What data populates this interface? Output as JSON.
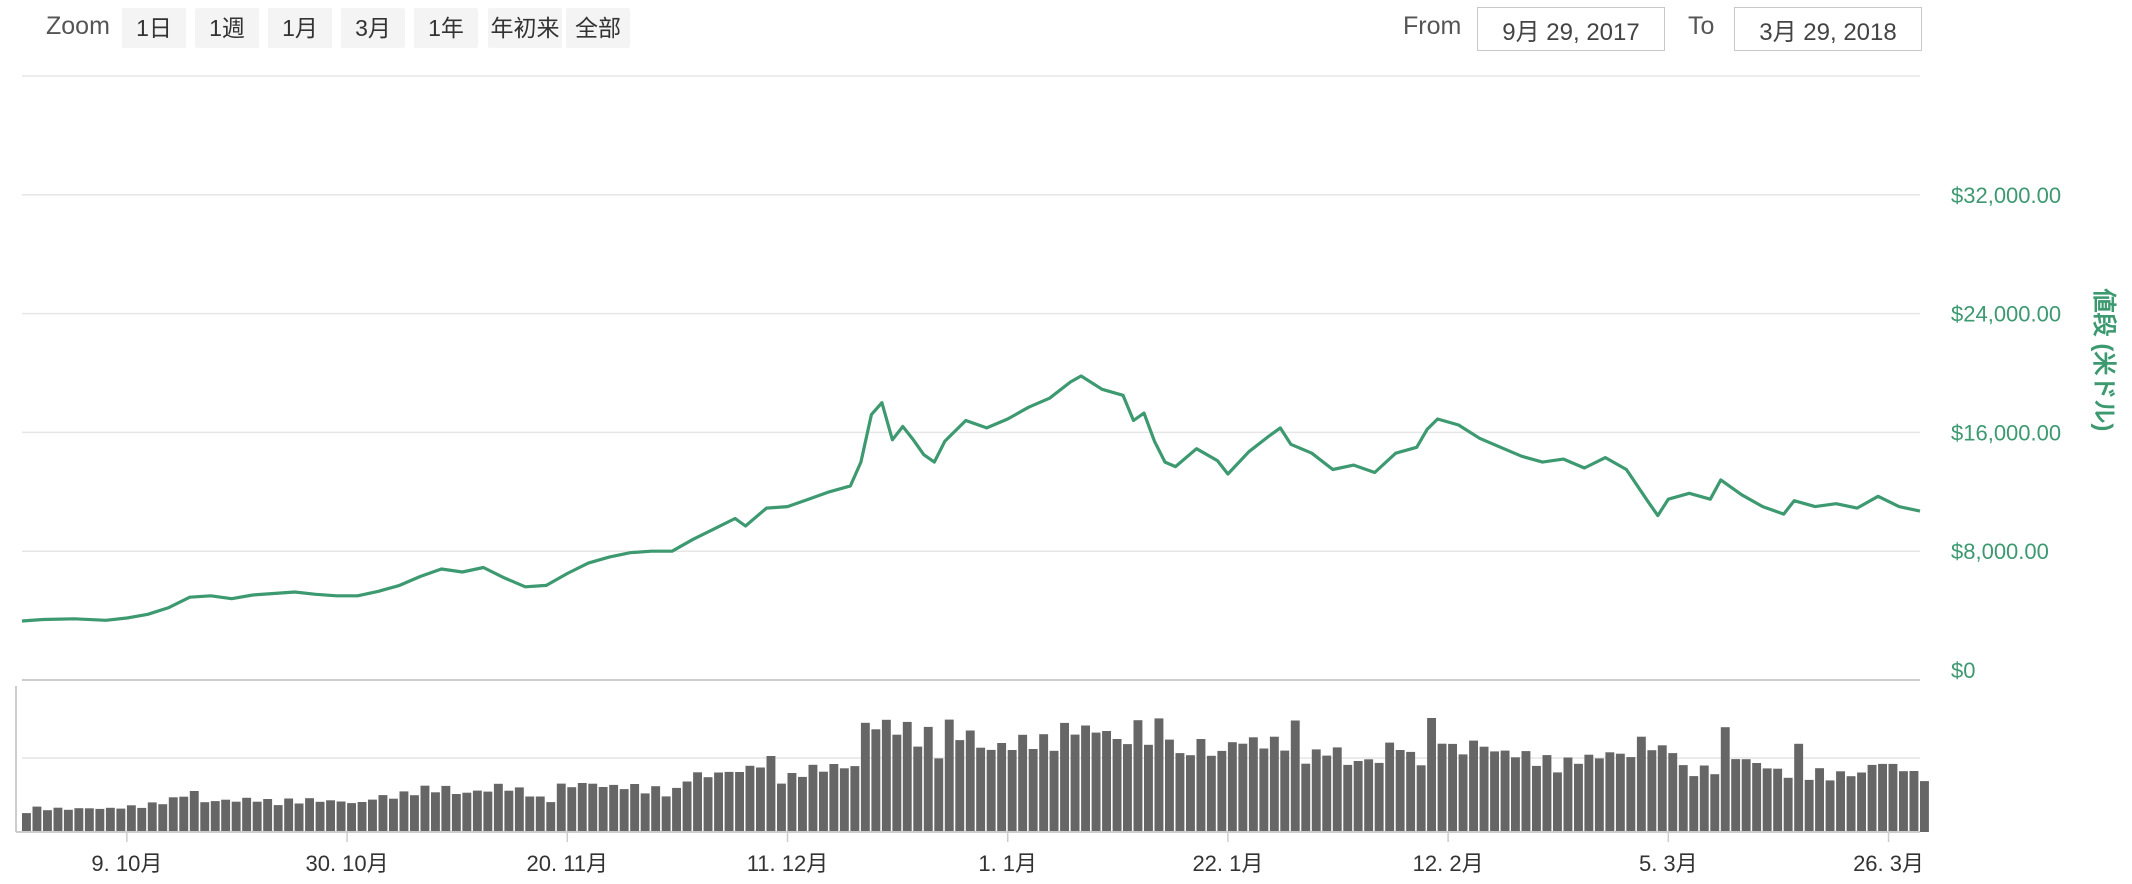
{
  "toolbar": {
    "zoom_label": "Zoom",
    "zoom_buttons": [
      "1日",
      "1週",
      "1月",
      "3月",
      "1年",
      "年初来",
      "全部"
    ],
    "from_label": "From",
    "from_value": "9月 29, 2017",
    "to_label": "To",
    "to_value": "3月 29, 2018"
  },
  "colors": {
    "price_line": "#3d9970",
    "volume_bar": "#666666",
    "grid": "#e6e6e6",
    "y_tick": "#3d9970"
  },
  "chart_data": {
    "type": "line",
    "title": "",
    "ylabel": "値段 (米ドル)",
    "ylim": [
      0,
      40000
    ],
    "y_ticks": [
      {
        "value": 0,
        "label": "$0"
      },
      {
        "value": 8000,
        "label": "$8,000.00"
      },
      {
        "value": 16000,
        "label": "$16,000.00"
      },
      {
        "value": 24000,
        "label": "$24,000.00"
      },
      {
        "value": 32000,
        "label": "$32,000.00"
      }
    ],
    "x_range": [
      "2017-09-29",
      "2018-03-29"
    ],
    "x_ticks": [
      {
        "date": "2017-10-09",
        "label": "9. 10月"
      },
      {
        "date": "2017-10-30",
        "label": "30. 10月"
      },
      {
        "date": "2017-11-20",
        "label": "20. 11月"
      },
      {
        "date": "2017-12-11",
        "label": "11. 12月"
      },
      {
        "date": "2018-01-01",
        "label": "1. 1月"
      },
      {
        "date": "2018-01-22",
        "label": "22. 1月"
      },
      {
        "date": "2018-02-12",
        "label": "12. 2月"
      },
      {
        "date": "2018-03-05",
        "label": "5. 3月"
      },
      {
        "date": "2018-03-26",
        "label": "26. 3月"
      }
    ],
    "grid": true,
    "series": [
      {
        "name": "",
        "points": [
          [
            "2017-09-29",
            3300
          ],
          [
            "2017-10-01",
            3400
          ],
          [
            "2017-10-04",
            3450
          ],
          [
            "2017-10-07",
            3350
          ],
          [
            "2017-10-09",
            3500
          ],
          [
            "2017-10-11",
            3750
          ],
          [
            "2017-10-13",
            4200
          ],
          [
            "2017-10-15",
            4900
          ],
          [
            "2017-10-17",
            5000
          ],
          [
            "2017-10-19",
            4800
          ],
          [
            "2017-10-21",
            5050
          ],
          [
            "2017-10-23",
            5150
          ],
          [
            "2017-10-25",
            5250
          ],
          [
            "2017-10-27",
            5100
          ],
          [
            "2017-10-29",
            5000
          ],
          [
            "2017-10-31",
            5000
          ],
          [
            "2017-11-02",
            5300
          ],
          [
            "2017-11-04",
            5700
          ],
          [
            "2017-11-06",
            6300
          ],
          [
            "2017-11-08",
            6800
          ],
          [
            "2017-11-10",
            6600
          ],
          [
            "2017-11-12",
            6900
          ],
          [
            "2017-11-14",
            6200
          ],
          [
            "2017-11-16",
            5600
          ],
          [
            "2017-11-18",
            5700
          ],
          [
            "2017-11-20",
            6500
          ],
          [
            "2017-11-22",
            7200
          ],
          [
            "2017-11-24",
            7600
          ],
          [
            "2017-11-26",
            7900
          ],
          [
            "2017-11-28",
            8000
          ],
          [
            "2017-11-30",
            8000
          ],
          [
            "2017-12-02",
            8800
          ],
          [
            "2017-12-04",
            9500
          ],
          [
            "2017-12-06",
            10200
          ],
          [
            "2017-12-07",
            9700
          ],
          [
            "2017-12-09",
            10900
          ],
          [
            "2017-12-11",
            11000
          ],
          [
            "2017-12-13",
            11500
          ],
          [
            "2017-12-15",
            12000
          ],
          [
            "2017-12-17",
            12400
          ],
          [
            "2017-12-18",
            14000
          ],
          [
            "2017-12-19",
            17200
          ],
          [
            "2017-12-20",
            18000
          ],
          [
            "2017-12-21",
            15500
          ],
          [
            "2017-12-22",
            16400
          ],
          [
            "2017-12-23",
            15500
          ],
          [
            "2017-12-24",
            14500
          ],
          [
            "2017-12-25",
            14000
          ],
          [
            "2017-12-26",
            15400
          ],
          [
            "2017-12-28",
            16800
          ],
          [
            "2017-12-30",
            16300
          ],
          [
            "2018-01-01",
            16900
          ],
          [
            "2018-01-03",
            17700
          ],
          [
            "2018-01-05",
            18300
          ],
          [
            "2018-01-07",
            19400
          ],
          [
            "2018-01-08",
            19800
          ],
          [
            "2018-01-10",
            18900
          ],
          [
            "2018-01-12",
            18500
          ],
          [
            "2018-01-13",
            16800
          ],
          [
            "2018-01-14",
            17300
          ],
          [
            "2018-01-15",
            15400
          ],
          [
            "2018-01-16",
            14000
          ],
          [
            "2018-01-17",
            13700
          ],
          [
            "2018-01-19",
            14900
          ],
          [
            "2018-01-21",
            14100
          ],
          [
            "2018-01-22",
            13200
          ],
          [
            "2018-01-24",
            14700
          ],
          [
            "2018-01-26",
            15800
          ],
          [
            "2018-01-27",
            16300
          ],
          [
            "2018-01-28",
            15200
          ],
          [
            "2018-01-30",
            14600
          ],
          [
            "2018-02-01",
            13500
          ],
          [
            "2018-02-03",
            13800
          ],
          [
            "2018-02-05",
            13300
          ],
          [
            "2018-02-07",
            14600
          ],
          [
            "2018-02-09",
            15000
          ],
          [
            "2018-02-10",
            16200
          ],
          [
            "2018-02-11",
            16900
          ],
          [
            "2018-02-13",
            16500
          ],
          [
            "2018-02-15",
            15600
          ],
          [
            "2018-02-17",
            15000
          ],
          [
            "2018-02-19",
            14400
          ],
          [
            "2018-02-21",
            14000
          ],
          [
            "2018-02-23",
            14200
          ],
          [
            "2018-02-25",
            13600
          ],
          [
            "2018-02-27",
            14300
          ],
          [
            "2018-03-01",
            13500
          ],
          [
            "2018-03-03",
            11400
          ],
          [
            "2018-03-04",
            10400
          ],
          [
            "2018-03-05",
            11500
          ],
          [
            "2018-03-07",
            11900
          ],
          [
            "2018-03-09",
            11500
          ],
          [
            "2018-03-10",
            12800
          ],
          [
            "2018-03-12",
            11800
          ],
          [
            "2018-03-14",
            11000
          ],
          [
            "2018-03-16",
            10500
          ],
          [
            "2018-03-17",
            11400
          ],
          [
            "2018-03-19",
            11000
          ],
          [
            "2018-03-21",
            11200
          ],
          [
            "2018-03-23",
            10900
          ],
          [
            "2018-03-25",
            11700
          ],
          [
            "2018-03-27",
            11000
          ],
          [
            "2018-03-29",
            10700
          ]
        ]
      }
    ]
  }
}
